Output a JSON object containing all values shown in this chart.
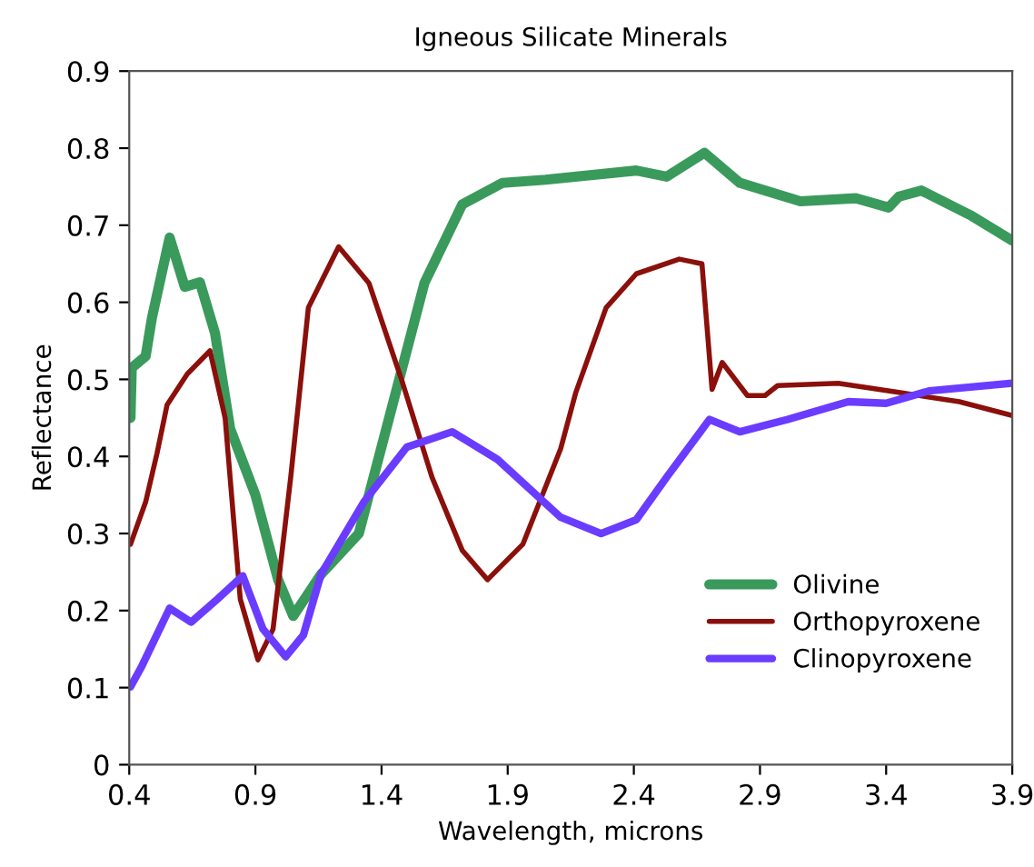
{
  "chart_data": {
    "type": "line",
    "title": "Igneous Silicate Minerals",
    "xlabel": "Wavelength, microns",
    "ylabel": "Reflectance",
    "xlim": [
      0.4,
      3.9
    ],
    "xticks": [
      0.4,
      0.9,
      1.4,
      1.9,
      2.4,
      2.9,
      3.4,
      3.9
    ],
    "ylim": [
      0,
      0.9
    ],
    "yticks": [
      0,
      0.1,
      0.2,
      0.3,
      0.4,
      0.5,
      0.6,
      0.7,
      0.8,
      0.9
    ],
    "grid": false,
    "legend": "bottom right",
    "marker": "none",
    "line_style": "solid",
    "series": [
      {
        "name": "Olivine",
        "color": "#3a9a5c",
        "x": [
          0.405,
          0.41,
          0.465,
          0.49,
          0.56,
          0.62,
          0.68,
          0.74,
          0.8,
          0.9,
          0.99,
          1.05,
          1.16,
          1.31,
          1.43,
          1.57,
          1.72,
          1.88,
          2.05,
          2.41,
          2.53,
          2.68,
          2.82,
          3.06,
          3.28,
          3.41,
          3.45,
          3.54,
          3.74,
          3.9
        ],
        "values": [
          0.45,
          0.515,
          0.53,
          0.58,
          0.684,
          0.62,
          0.626,
          0.56,
          0.436,
          0.35,
          0.24,
          0.193,
          0.247,
          0.3,
          0.45,
          0.625,
          0.727,
          0.755,
          0.759,
          0.771,
          0.763,
          0.794,
          0.755,
          0.731,
          0.735,
          0.723,
          0.737,
          0.745,
          0.712,
          0.68
        ]
      },
      {
        "name": "Orthopyroxene",
        "color": "#8b0f0a",
        "x": [
          0.405,
          0.465,
          0.51,
          0.55,
          0.63,
          0.72,
          0.78,
          0.84,
          0.91,
          0.97,
          1.04,
          1.11,
          1.23,
          1.35,
          1.48,
          1.6,
          1.72,
          1.82,
          1.96,
          2.11,
          2.17,
          2.29,
          2.41,
          2.58,
          2.67,
          2.71,
          2.75,
          2.85,
          2.92,
          2.97,
          3.21,
          3.45,
          3.69,
          3.9
        ],
        "values": [
          0.286,
          0.341,
          0.404,
          0.467,
          0.507,
          0.537,
          0.45,
          0.215,
          0.136,
          0.176,
          0.373,
          0.593,
          0.672,
          0.625,
          0.499,
          0.373,
          0.278,
          0.24,
          0.286,
          0.41,
          0.483,
          0.593,
          0.637,
          0.656,
          0.65,
          0.487,
          0.522,
          0.479,
          0.479,
          0.492,
          0.495,
          0.483,
          0.471,
          0.453
        ]
      },
      {
        "name": "Clinopyroxene",
        "color": "#6a3cff",
        "x": [
          0.405,
          0.45,
          0.56,
          0.645,
          0.75,
          0.85,
          0.93,
          1.02,
          1.09,
          1.16,
          1.33,
          1.5,
          1.68,
          1.86,
          2.11,
          2.27,
          2.41,
          2.53,
          2.7,
          2.82,
          3.01,
          3.25,
          3.4,
          3.57,
          3.9
        ],
        "values": [
          0.101,
          0.128,
          0.203,
          0.185,
          0.215,
          0.245,
          0.176,
          0.14,
          0.168,
          0.247,
          0.341,
          0.412,
          0.432,
          0.396,
          0.321,
          0.3,
          0.318,
          0.373,
          0.448,
          0.432,
          0.448,
          0.471,
          0.469,
          0.485,
          0.495
        ]
      }
    ]
  }
}
